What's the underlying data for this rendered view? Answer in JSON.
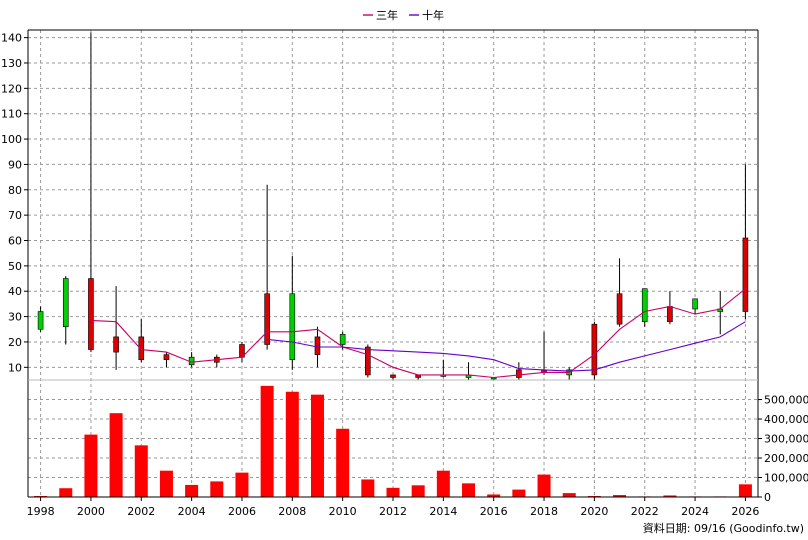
{
  "chart_data": {
    "type": "candlestick",
    "legend": {
      "placement": "top-center",
      "items": [
        {
          "label": "三年",
          "color": "#cc0066"
        },
        {
          "label": "十年",
          "color": "#6600cc"
        }
      ]
    },
    "price": {
      "ylim": [
        5,
        143
      ],
      "yticks": [
        10,
        20,
        30,
        40,
        50,
        60,
        70,
        80,
        90,
        100,
        110,
        120,
        130,
        140
      ],
      "candles": [
        {
          "year": 1998,
          "open": 25,
          "close": 32,
          "high": 34,
          "low": 24
        },
        {
          "year": 1999,
          "open": 26,
          "close": 45,
          "high": 46,
          "low": 19
        },
        {
          "year": 2000,
          "open": 45,
          "close": 17,
          "high": 142,
          "low": 16
        },
        {
          "year": 2001,
          "open": 22,
          "close": 16,
          "high": 42,
          "low": 9
        },
        {
          "year": 2002,
          "open": 22,
          "close": 13,
          "high": 29,
          "low": 12
        },
        {
          "year": 2003,
          "open": 15,
          "close": 13,
          "high": 16,
          "low": 10
        },
        {
          "year": 2004,
          "open": 11,
          "close": 14,
          "high": 16,
          "low": 10
        },
        {
          "year": 2005,
          "open": 14,
          "close": 12,
          "high": 15,
          "low": 10
        },
        {
          "year": 2006,
          "open": 19,
          "close": 14,
          "high": 20,
          "low": 12
        },
        {
          "year": 2007,
          "open": 39,
          "close": 19,
          "high": 82,
          "low": 17
        },
        {
          "year": 2008,
          "open": 13,
          "close": 39,
          "high": 54,
          "low": 9
        },
        {
          "year": 2009,
          "open": 22,
          "close": 15,
          "high": 26,
          "low": 10
        },
        {
          "year": 2010,
          "open": 19,
          "close": 23,
          "high": 24,
          "low": 17
        },
        {
          "year": 2011,
          "open": 18,
          "close": 7,
          "high": 19,
          "low": 6
        },
        {
          "year": 2012,
          "open": 7,
          "close": 6,
          "high": 7,
          "low": 5
        },
        {
          "year": 2013,
          "open": 7,
          "close": 6,
          "high": 7,
          "low": 5
        },
        {
          "year": 2014,
          "open": 7,
          "close": 7,
          "high": 13,
          "low": 6
        },
        {
          "year": 2015,
          "open": 6,
          "close": 7,
          "high": 12,
          "low": 5
        },
        {
          "year": 2016,
          "open": 6,
          "close": 6,
          "high": 6,
          "low": 5
        },
        {
          "year": 2017,
          "open": 9,
          "close": 6,
          "high": 12,
          "low": 5
        },
        {
          "year": 2018,
          "open": 9,
          "close": 8,
          "high": 24,
          "low": 7
        },
        {
          "year": 2019,
          "open": 7,
          "close": 9,
          "high": 10,
          "low": 5
        },
        {
          "year": 2020,
          "open": 27,
          "close": 7,
          "high": 28,
          "low": 5
        },
        {
          "year": 2021,
          "open": 39,
          "close": 27,
          "high": 53,
          "low": 26
        },
        {
          "year": 2022,
          "open": 28,
          "close": 41,
          "high": 41,
          "low": 26
        },
        {
          "year": 2023,
          "open": 34,
          "close": 28,
          "high": 40,
          "low": 27
        },
        {
          "year": 2024,
          "open": 33,
          "close": 37,
          "high": 37,
          "low": 31
        },
        {
          "year": 2025,
          "open": 32,
          "close": 33,
          "high": 40,
          "low": 23
        },
        {
          "year": 2026,
          "open": 61,
          "close": 32,
          "high": 90,
          "low": 29
        }
      ],
      "series": [
        {
          "name": "三年",
          "color": "#cc0066",
          "points": [
            [
              2000,
              28.5
            ],
            [
              2001,
              28
            ],
            [
              2002,
              17
            ],
            [
              2003,
              16
            ],
            [
              2004,
              12
            ],
            [
              2005,
              13
            ],
            [
              2006,
              14
            ],
            [
              2007,
              24
            ],
            [
              2008,
              24
            ],
            [
              2009,
              25
            ],
            [
              2010,
              18
            ],
            [
              2011,
              15
            ],
            [
              2012,
              10
            ],
            [
              2013,
              7
            ],
            [
              2014,
              7
            ],
            [
              2015,
              7
            ],
            [
              2016,
              6
            ],
            [
              2017,
              7
            ],
            [
              2018,
              8
            ],
            [
              2019,
              8
            ],
            [
              2020,
              15
            ],
            [
              2021,
              25
            ],
            [
              2022,
              32
            ],
            [
              2023,
              34
            ],
            [
              2024,
              31
            ],
            [
              2025,
              33
            ],
            [
              2026,
              41
            ]
          ]
        },
        {
          "name": "十年",
          "color": "#6600cc",
          "points": [
            [
              2007,
              21
            ],
            [
              2008,
              20
            ],
            [
              2009,
              18
            ],
            [
              2010,
              18
            ],
            [
              2011,
              17
            ],
            [
              2012,
              16.5
            ],
            [
              2013,
              16
            ],
            [
              2014,
              15.5
            ],
            [
              2015,
              14.5
            ],
            [
              2016,
              13
            ],
            [
              2017,
              9.5
            ],
            [
              2018,
              9
            ],
            [
              2019,
              8.5
            ],
            [
              2020,
              9
            ],
            [
              2021,
              12
            ],
            [
              2022,
              14.5
            ],
            [
              2023,
              17
            ],
            [
              2024,
              19.5
            ],
            [
              2025,
              22
            ],
            [
              2026,
              28
            ]
          ]
        }
      ]
    },
    "volume": {
      "ylim": [
        0,
        590000
      ],
      "yticks": [
        0,
        100000,
        200000,
        300000,
        400000,
        500000
      ],
      "ytick_labels": [
        "0",
        "100,000",
        "200,000",
        "300,000",
        "400,000",
        "500,000"
      ],
      "bars": [
        {
          "year": 1998,
          "value": 5000
        },
        {
          "year": 1999,
          "value": 45000
        },
        {
          "year": 2000,
          "value": 320000
        },
        {
          "year": 2001,
          "value": 430000
        },
        {
          "year": 2002,
          "value": 265000
        },
        {
          "year": 2003,
          "value": 135000
        },
        {
          "year": 2004,
          "value": 62000
        },
        {
          "year": 2005,
          "value": 80000
        },
        {
          "year": 2006,
          "value": 125000
        },
        {
          "year": 2007,
          "value": 570000
        },
        {
          "year": 2008,
          "value": 540000
        },
        {
          "year": 2009,
          "value": 525000
        },
        {
          "year": 2010,
          "value": 350000
        },
        {
          "year": 2011,
          "value": 90000
        },
        {
          "year": 2012,
          "value": 47000
        },
        {
          "year": 2013,
          "value": 60000
        },
        {
          "year": 2014,
          "value": 135000
        },
        {
          "year": 2015,
          "value": 70000
        },
        {
          "year": 2016,
          "value": 13000
        },
        {
          "year": 2017,
          "value": 38000
        },
        {
          "year": 2018,
          "value": 115000
        },
        {
          "year": 2019,
          "value": 20000
        },
        {
          "year": 2020,
          "value": 5000
        },
        {
          "year": 2021,
          "value": 10000
        },
        {
          "year": 2022,
          "value": 3000
        },
        {
          "year": 2023,
          "value": 8000
        },
        {
          "year": 2024,
          "value": 3000
        },
        {
          "year": 2025,
          "value": 3000
        },
        {
          "year": 2026,
          "value": 65000
        }
      ]
    },
    "x": {
      "xlim": [
        1997.5,
        2026.5
      ],
      "xticks": [
        1998,
        2000,
        2002,
        2004,
        2006,
        2008,
        2010,
        2012,
        2014,
        2016,
        2018,
        2020,
        2022,
        2024,
        2026
      ]
    },
    "grid": true,
    "source_note": "資料日期: 09/16 (Goodinfo.tw)"
  }
}
